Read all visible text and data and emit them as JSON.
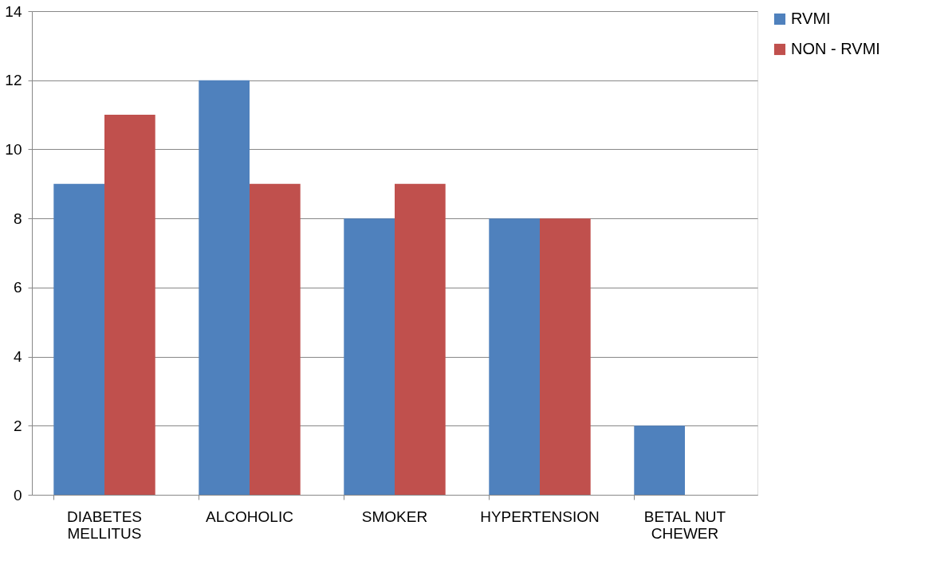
{
  "chart_data": {
    "type": "bar",
    "categories": [
      "DIABETES MELLITUS",
      "ALCOHOLIC",
      "SMOKER",
      "HYPERTENSION",
      "BETAL NUT CHEWER"
    ],
    "series": [
      {
        "name": "RVMI",
        "color": "#4f81bd",
        "values": [
          9,
          12,
          8,
          8,
          2
        ]
      },
      {
        "name": "NON - RVMI",
        "color": "#c0504d",
        "values": [
          11,
          9,
          9,
          8,
          0
        ]
      }
    ],
    "ylim": [
      0,
      14
    ],
    "yticks": [
      0,
      2,
      4,
      6,
      8,
      10,
      12,
      14
    ],
    "grid": "y",
    "legend": "right"
  }
}
